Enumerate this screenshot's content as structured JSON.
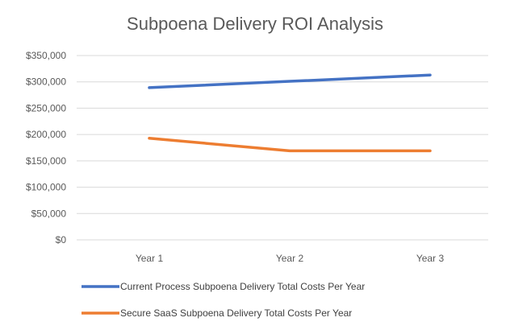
{
  "chart_data": {
    "type": "line",
    "title": "Subpoena Delivery ROI Analysis",
    "categories": [
      "Year 1",
      "Year 2",
      "Year 3"
    ],
    "ylim": [
      0,
      350000
    ],
    "y_ticks": [
      "$0",
      "$50,000",
      "$100,000",
      "$150,000",
      "$200,000",
      "$250,000",
      "$300,000",
      "$350,000"
    ],
    "grid": true,
    "legend_position": "bottom",
    "series": [
      {
        "name": "Current Process Subpoena Delivery Total Costs Per Year",
        "values": [
          289000,
          301000,
          313000
        ],
        "color": "#4472C4"
      },
      {
        "name": "Secure SaaS Subpoena Delivery Total Costs Per Year",
        "values": [
          193000,
          169000,
          169000
        ],
        "color": "#ED7D31"
      }
    ]
  }
}
